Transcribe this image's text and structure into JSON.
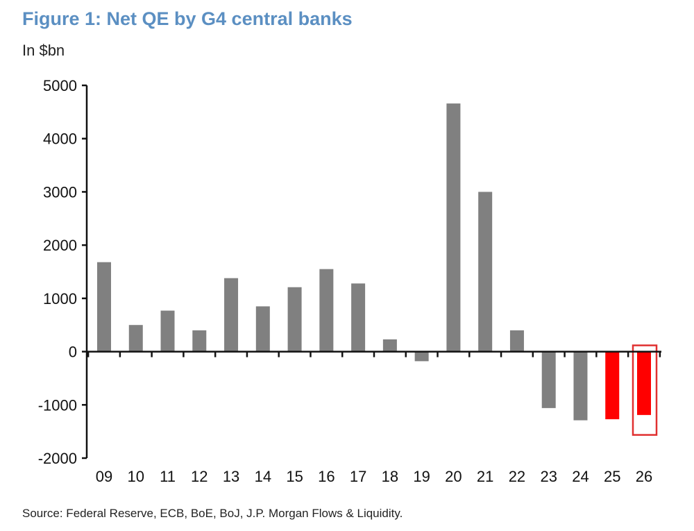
{
  "chart_data": {
    "type": "bar",
    "title": "Figure 1: Net QE by G4 central banks",
    "ylabel": "In $bn",
    "xlabel": "",
    "categories": [
      "09",
      "10",
      "11",
      "12",
      "13",
      "14",
      "15",
      "16",
      "17",
      "18",
      "19",
      "20",
      "21",
      "22",
      "23",
      "24",
      "25",
      "26"
    ],
    "values": [
      1680,
      500,
      770,
      400,
      1380,
      850,
      1210,
      1550,
      1280,
      230,
      -180,
      4660,
      3000,
      400,
      -1060,
      -1290,
      -1270,
      -1190
    ],
    "highlighted": [
      "25",
      "26"
    ],
    "boxed": [
      "26"
    ],
    "ylim": [
      -2000,
      5000
    ],
    "yticks": [
      5000,
      4000,
      3000,
      2000,
      1000,
      0,
      -1000,
      -2000
    ],
    "grid": false,
    "colors": {
      "bar": "#808080",
      "highlight": "#ff0000",
      "box": "#e03030"
    },
    "source": "Source: Federal Reserve, ECB, BoE, BoJ, J.P. Morgan Flows & Liquidity."
  }
}
